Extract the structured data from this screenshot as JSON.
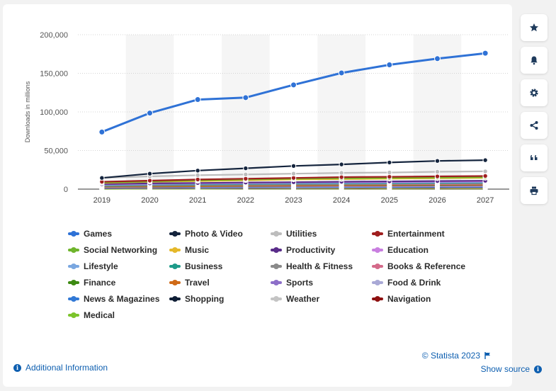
{
  "chart_data": {
    "type": "line",
    "title": "",
    "ylabel": "Downloads in millions",
    "xlabel": "",
    "x": [
      "2019",
      "2020",
      "2021",
      "2022",
      "2023",
      "2024",
      "2025",
      "2026",
      "2027"
    ],
    "ylim": [
      0,
      200000
    ],
    "yticks": [
      "0",
      "50,000",
      "100,000",
      "150,000",
      "200,000"
    ],
    "ytick_values": [
      0,
      50000,
      100000,
      150000,
      200000
    ],
    "grid": true,
    "legend_position": "bottom",
    "series": [
      {
        "name": "Games",
        "color": "#2f72d6",
        "values": [
          74000,
          98500,
          116000,
          118500,
          135000,
          150500,
          161000,
          169000,
          176000
        ]
      },
      {
        "name": "Photo & Video",
        "color": "#14243d",
        "values": [
          14500,
          20000,
          24000,
          27000,
          30000,
          32000,
          34500,
          36500,
          37500
        ]
      },
      {
        "name": "Utilities",
        "color": "#bdbdbd",
        "values": [
          14500,
          16500,
          18000,
          19000,
          20000,
          21000,
          21500,
          22500,
          23000
        ]
      },
      {
        "name": "Entertainment",
        "color": "#a01f1f",
        "values": [
          9500,
          11000,
          12500,
          13500,
          14500,
          15500,
          16000,
          16500,
          17000
        ]
      },
      {
        "name": "Social Networking",
        "color": "#6fb52c",
        "values": [
          8500,
          10000,
          11500,
          12500,
          13500,
          14000,
          14500,
          15000,
          15500
        ]
      },
      {
        "name": "Music",
        "color": "#e5b82a",
        "values": [
          8000,
          9500,
          10500,
          11500,
          12500,
          13000,
          13500,
          14000,
          14500
        ]
      },
      {
        "name": "Productivity",
        "color": "#5a2d8a",
        "values": [
          6500,
          7500,
          8000,
          8500,
          9000,
          9500,
          10000,
          10500,
          10800
        ]
      },
      {
        "name": "Education",
        "color": "#c97fe0",
        "values": [
          6000,
          7000,
          7500,
          8000,
          8500,
          9000,
          9300,
          9600,
          9900
        ]
      },
      {
        "name": "Lifestyle",
        "color": "#7aa7e0",
        "values": [
          5500,
          6500,
          7000,
          7500,
          8000,
          8300,
          8600,
          8900,
          9200
        ]
      },
      {
        "name": "Business",
        "color": "#1e9b8a",
        "values": [
          5000,
          5800,
          6300,
          6800,
          7200,
          7500,
          7800,
          8100,
          8400
        ]
      },
      {
        "name": "Health & Fitness",
        "color": "#8a8a8a",
        "values": [
          4500,
          5300,
          5800,
          6200,
          6600,
          6900,
          7200,
          7400,
          7600
        ]
      },
      {
        "name": "Books & Reference",
        "color": "#d46a8a",
        "values": [
          4000,
          4700,
          5100,
          5500,
          5800,
          6100,
          6300,
          6500,
          6700
        ]
      },
      {
        "name": "Finance",
        "color": "#3d8a12",
        "values": [
          3500,
          4200,
          4600,
          5000,
          5300,
          5600,
          5800,
          6000,
          6200
        ]
      },
      {
        "name": "Travel",
        "color": "#cf6a17",
        "values": [
          3000,
          3300,
          3800,
          4200,
          4500,
          4800,
          5000,
          5200,
          5400
        ]
      },
      {
        "name": "Sports",
        "color": "#8d6fc9",
        "values": [
          2500,
          2900,
          3200,
          3500,
          3700,
          3900,
          4100,
          4300,
          4400
        ]
      },
      {
        "name": "Food & Drink",
        "color": "#a9a9d6",
        "values": [
          2000,
          2500,
          2800,
          3000,
          3200,
          3400,
          3600,
          3700,
          3800
        ]
      },
      {
        "name": "News & Magazines",
        "color": "#3279d6",
        "values": [
          1800,
          2100,
          2300,
          2500,
          2700,
          2800,
          2900,
          3000,
          3100
        ]
      },
      {
        "name": "Shopping",
        "color": "#0f1e35",
        "values": [
          1500,
          1800,
          2000,
          2200,
          2400,
          2500,
          2600,
          2700,
          2800
        ]
      },
      {
        "name": "Weather",
        "color": "#c4c4c4",
        "values": [
          1200,
          1400,
          1500,
          1600,
          1700,
          1800,
          1900,
          2000,
          2100
        ]
      },
      {
        "name": "Navigation",
        "color": "#8e1010",
        "values": [
          1000,
          1100,
          1200,
          1300,
          1400,
          1500,
          1550,
          1600,
          1650
        ]
      },
      {
        "name": "Medical",
        "color": "#7cc42c",
        "values": [
          500,
          600,
          650,
          700,
          750,
          800,
          850,
          900,
          950
        ]
      }
    ]
  },
  "sidebar": {
    "buttons": [
      {
        "name": "favorite",
        "icon": "star-icon"
      },
      {
        "name": "notification",
        "icon": "bell-icon"
      },
      {
        "name": "settings",
        "icon": "gear-icon"
      },
      {
        "name": "share",
        "icon": "share-icon"
      },
      {
        "name": "cite",
        "icon": "quote-icon"
      },
      {
        "name": "print",
        "icon": "printer-icon"
      }
    ]
  },
  "footer": {
    "credit": "© Statista 2023",
    "credit_icon": "flag-icon",
    "additional_info": "Additional Information",
    "show_source": "Show source",
    "info_icon": "info-icon",
    "info_glyph": "i"
  }
}
